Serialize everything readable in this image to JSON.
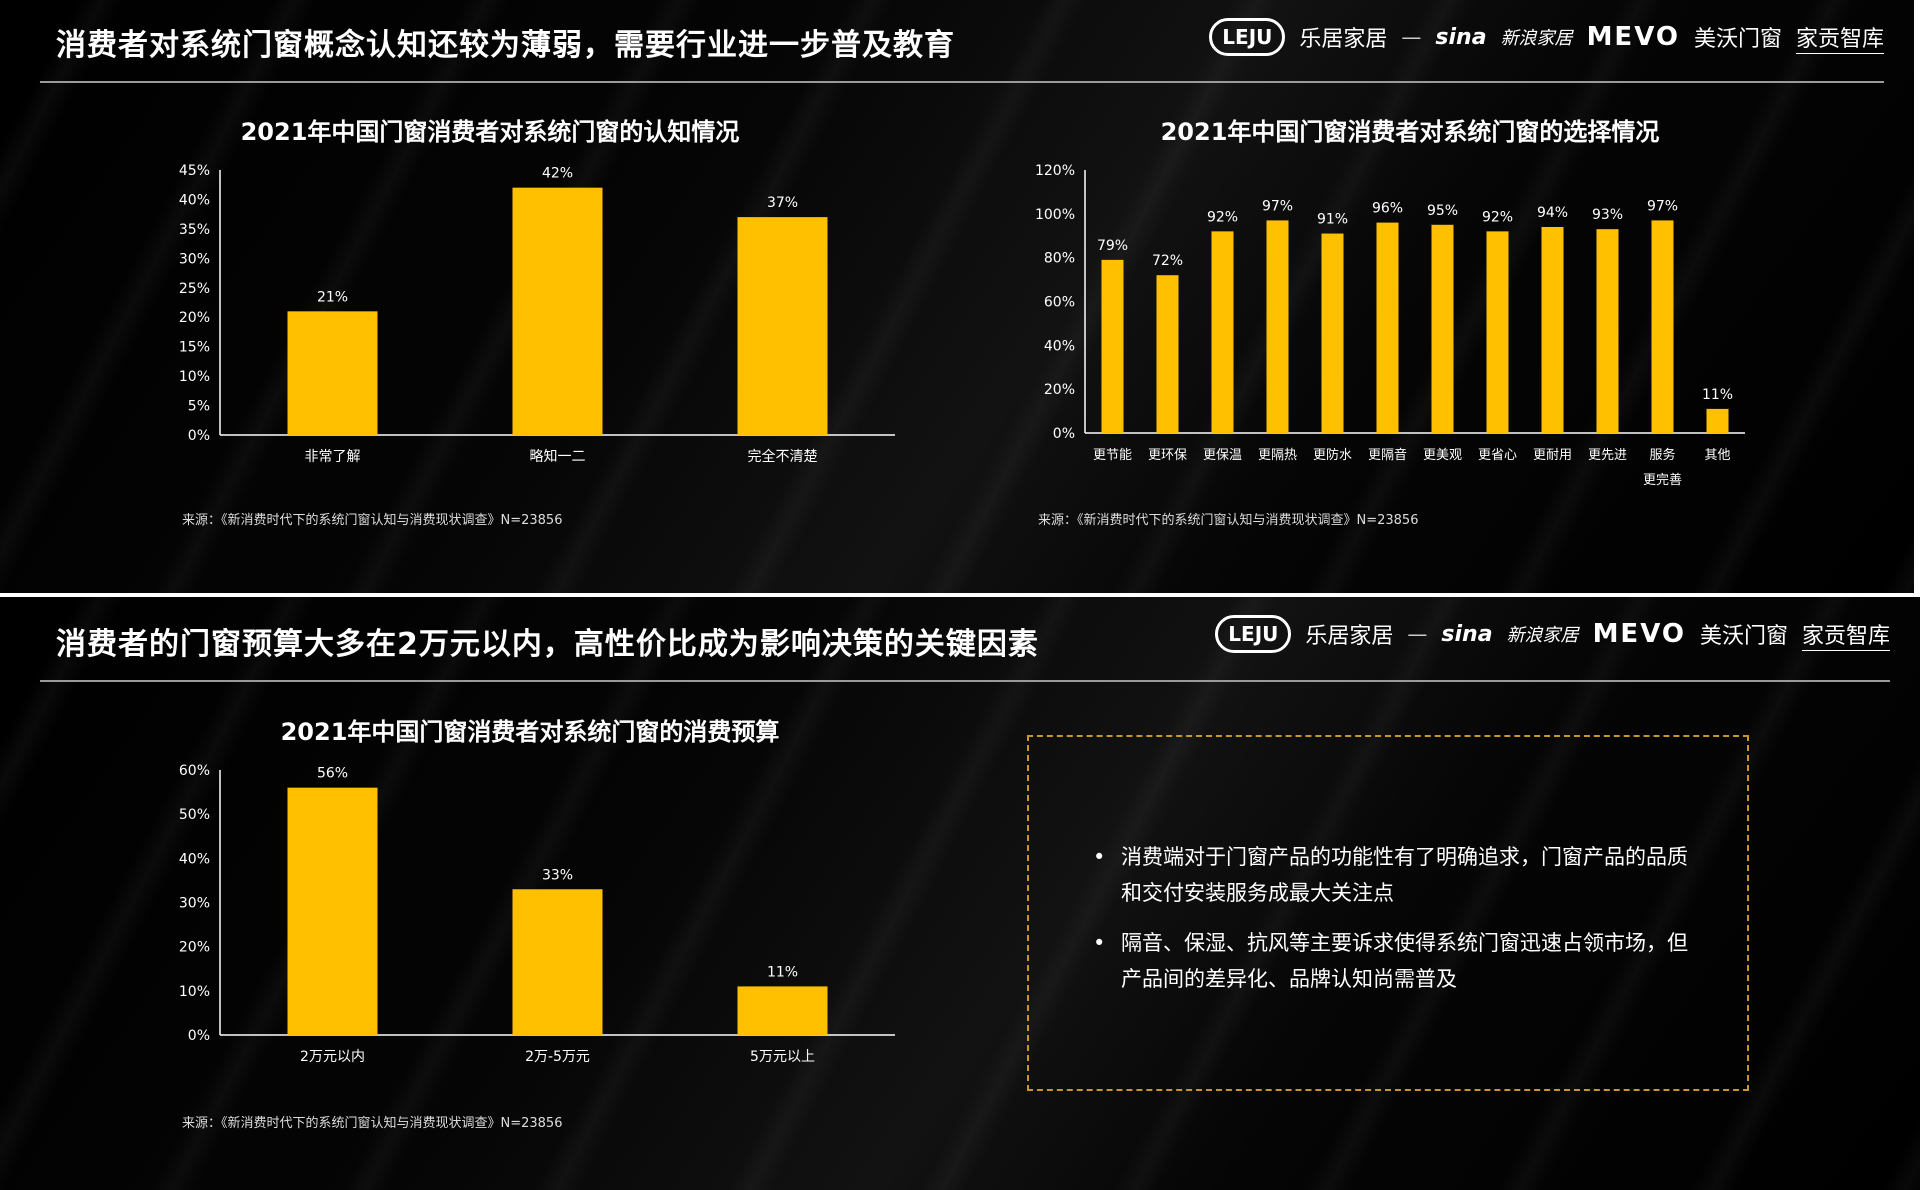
{
  "slides": [
    {
      "title": "消费者对系统门窗概念认知还较为薄弱，需要行业进一步普及教育"
    },
    {
      "title": "消费者的门窗预算大多在2万元以内，高性价比成为影响决策的关键因素"
    }
  ],
  "logos": {
    "leju_badge": "LEJU",
    "leju_text": "乐居家居",
    "dash": "—",
    "sina": "sina",
    "sina_text": "新浪家居",
    "mevo": "MEVO",
    "mevo_text": "美沃门窗",
    "jiagong": "家贡智库"
  },
  "source": "来源：《新消费时代下的系统门窗认知与消费现状调查》N=23856",
  "chart_data": [
    {
      "type": "bar",
      "title": "2021年中国门窗消费者对系统门窗的认知情况",
      "categories": [
        "非常了解",
        "略知一二",
        "完全不清楚"
      ],
      "values": [
        21,
        42,
        37
      ],
      "labels": [
        "21%",
        "42%",
        "37%"
      ],
      "ylim": [
        0,
        45
      ],
      "yticks": [
        "0%",
        "5%",
        "10%",
        "15%",
        "20%",
        "25%",
        "30%",
        "35%",
        "40%",
        "45%"
      ],
      "color": "#FFC000"
    },
    {
      "type": "bar",
      "title": "2021年中国门窗消费者对系统门窗的选择情况",
      "categories": [
        "更节能",
        "更环保",
        "更保温",
        "更隔热",
        "更防水",
        "更隔音",
        "更美观",
        "更省心",
        "更耐用",
        "更先进",
        "服务更完善",
        "其他"
      ],
      "category_lines": [
        [
          "更节能"
        ],
        [
          "更环保"
        ],
        [
          "更保温"
        ],
        [
          "更隔热"
        ],
        [
          "更防水"
        ],
        [
          "更隔音"
        ],
        [
          "更美观"
        ],
        [
          "更省心"
        ],
        [
          "更耐用"
        ],
        [
          "更先进"
        ],
        [
          "服务",
          "更完善"
        ],
        [
          "其他"
        ]
      ],
      "values": [
        79,
        72,
        92,
        97,
        91,
        96,
        95,
        92,
        94,
        93,
        97,
        11
      ],
      "labels": [
        "79%",
        "72%",
        "92%",
        "97%",
        "91%",
        "96%",
        "95%",
        "92%",
        "94%",
        "93%",
        "97%",
        "11%"
      ],
      "ylim": [
        0,
        120
      ],
      "yticks": [
        "0%",
        "20%",
        "40%",
        "60%",
        "80%",
        "100%",
        "120%"
      ],
      "color": "#FFC000"
    },
    {
      "type": "bar",
      "title": "2021年中国门窗消费者对系统门窗的消费预算",
      "categories": [
        "2万元以内",
        "2万-5万元",
        "5万元以上"
      ],
      "values": [
        56,
        33,
        11
      ],
      "labels": [
        "56%",
        "33%",
        "11%"
      ],
      "ylim": [
        0,
        60
      ],
      "yticks": [
        "0%",
        "10%",
        "20%",
        "30%",
        "40%",
        "50%",
        "60%"
      ],
      "color": "#FFC000"
    }
  ],
  "notes": [
    "消费端对于门窗产品的功能性有了明确追求，门窗产品的品质和交付安装服务成最大关注点",
    "隔音、保湿、抗风等主要诉求使得系统门窗迅速占领市场，但产品间的差异化、品牌认知尚需普及"
  ]
}
